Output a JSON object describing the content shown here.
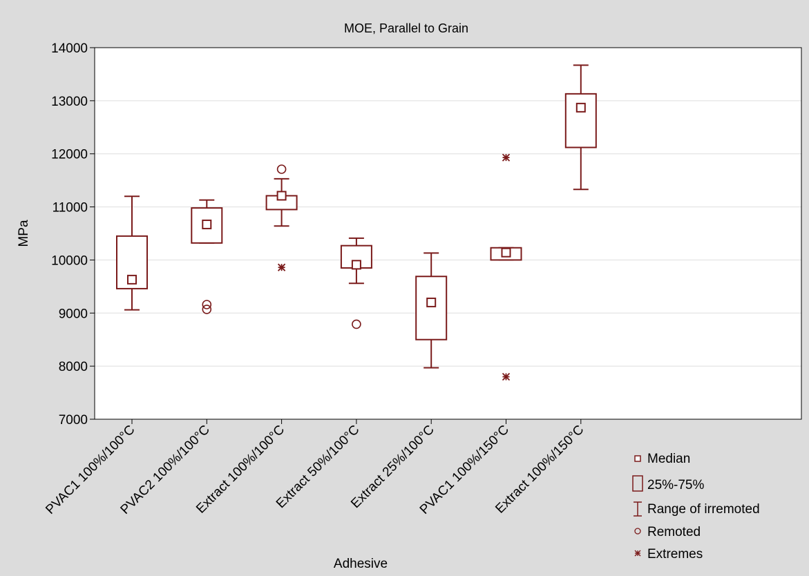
{
  "chart_data": {
    "type": "box",
    "title": "MOE, Parallel to Grain",
    "xlabel": "Adhesive",
    "ylabel": "MPa",
    "ylim": [
      7000,
      14000
    ],
    "yticks": [
      7000,
      8000,
      9000,
      10000,
      11000,
      12000,
      13000,
      14000
    ],
    "grid": true,
    "legend_position": "bottom-right",
    "color": "#7a1a1a",
    "categories": [
      "PVAC1 100%/100°C",
      "PVAC2 100%/100°C",
      "Extract 100%/100°C",
      "Extract 50%/100°C",
      "Extract 25%/100°C",
      "PVAC1 100%/150°C",
      "Extract 100%/150°C"
    ],
    "boxes": [
      {
        "median": 9630,
        "q1": 9460,
        "q3": 10450,
        "whisker_low": 9060,
        "whisker_high": 11200,
        "remoted": [],
        "extremes": []
      },
      {
        "median": 10670,
        "q1": 10320,
        "q3": 10980,
        "whisker_low": 10320,
        "whisker_high": 11130,
        "remoted": [
          9160,
          9070
        ],
        "extremes": []
      },
      {
        "median": 11210,
        "q1": 10950,
        "q3": 11210,
        "whisker_low": 10640,
        "whisker_high": 11530,
        "remoted": [
          11710
        ],
        "extremes": [
          9860
        ]
      },
      {
        "median": 9910,
        "q1": 9850,
        "q3": 10270,
        "whisker_low": 9560,
        "whisker_high": 10410,
        "remoted": [
          8790
        ],
        "extremes": []
      },
      {
        "median": 9200,
        "q1": 8500,
        "q3": 9690,
        "whisker_low": 7970,
        "whisker_high": 10130,
        "remoted": [],
        "extremes": []
      },
      {
        "median": 10140,
        "q1": 10000,
        "q3": 10230,
        "whisker_low": 10000,
        "whisker_high": 10230,
        "remoted": [],
        "extremes": [
          11930,
          7800
        ]
      },
      {
        "median": 12870,
        "q1": 12120,
        "q3": 13130,
        "whisker_low": 11330,
        "whisker_high": 13670,
        "remoted": [],
        "extremes": []
      }
    ],
    "legend": [
      {
        "key": "median",
        "label": "Median"
      },
      {
        "key": "box",
        "label": "25%-75%"
      },
      {
        "key": "range",
        "label": "Range of irremoted"
      },
      {
        "key": "remoted",
        "label": "Remoted"
      },
      {
        "key": "extremes",
        "label": "Extremes"
      }
    ]
  }
}
